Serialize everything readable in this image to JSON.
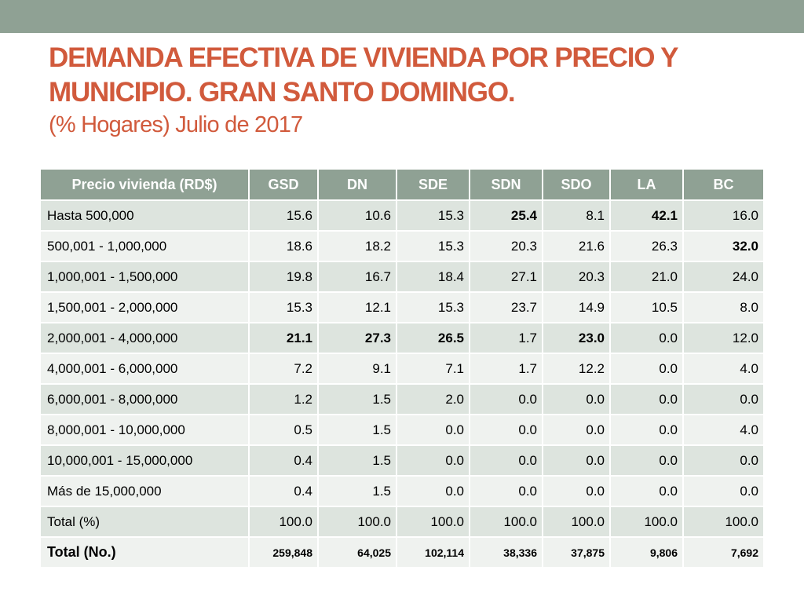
{
  "slide": {
    "title_line1": "DEMANDA EFECTIVA DE VIVIENDA POR PRECIO Y",
    "title_line2": "MUNICIPIO. GRAN SANTO DOMINGO.",
    "subtitle": "(% Hogares) Julio de 2017"
  },
  "colors": {
    "accent_band": "#8fa194",
    "title": "#d15a3c"
  },
  "table": {
    "headers": [
      "Precio vivienda (RD$)",
      "GSD",
      "DN",
      "SDE",
      "SDN",
      "SDO",
      "LA",
      "BC"
    ],
    "rows": [
      [
        "Hasta 500,000",
        "15.6",
        "10.6",
        "15.3",
        "25.4",
        "8.1",
        "42.1",
        "16.0"
      ],
      [
        "500,001 - 1,000,000",
        "18.6",
        "18.2",
        "15.3",
        "20.3",
        "21.6",
        "26.3",
        "32.0"
      ],
      [
        "1,000,001 - 1,500,000",
        "19.8",
        "16.7",
        "18.4",
        "27.1",
        "20.3",
        "21.0",
        "24.0"
      ],
      [
        "1,500,001 - 2,000,000",
        "15.3",
        "12.1",
        "15.3",
        "23.7",
        "14.9",
        "10.5",
        "8.0"
      ],
      [
        "2,000,001 - 4,000,000",
        "21.1",
        "27.3",
        "26.5",
        "1.7",
        "23.0",
        "0.0",
        "12.0"
      ],
      [
        "4,000,001 - 6,000,000",
        "7.2",
        "9.1",
        "7.1",
        "1.7",
        "12.2",
        "0.0",
        "4.0"
      ],
      [
        "6,000,001 - 8,000,000",
        "1.2",
        "1.5",
        "2.0",
        "0.0",
        "0.0",
        "0.0",
        "0.0"
      ],
      [
        "8,000,001 - 10,000,000",
        "0.5",
        "1.5",
        "0.0",
        "0.0",
        "0.0",
        "0.0",
        "4.0"
      ],
      [
        "10,000,001 - 15,000,000",
        "0.4",
        "1.5",
        "0.0",
        "0.0",
        "0.0",
        "0.0",
        "0.0"
      ],
      [
        "Más de 15,000,000",
        "0.4",
        "1.5",
        "0.0",
        "0.0",
        "0.0",
        "0.0",
        "0.0"
      ],
      [
        "Total (%)",
        "100.0",
        "100.0",
        "100.0",
        "100.0",
        "100.0",
        "100.0",
        "100.0"
      ],
      [
        "Total (No.)",
        "259,848",
        "64,025",
        "102,114",
        "38,336",
        "37,875",
        "9,806",
        "7,692"
      ]
    ]
  }
}
